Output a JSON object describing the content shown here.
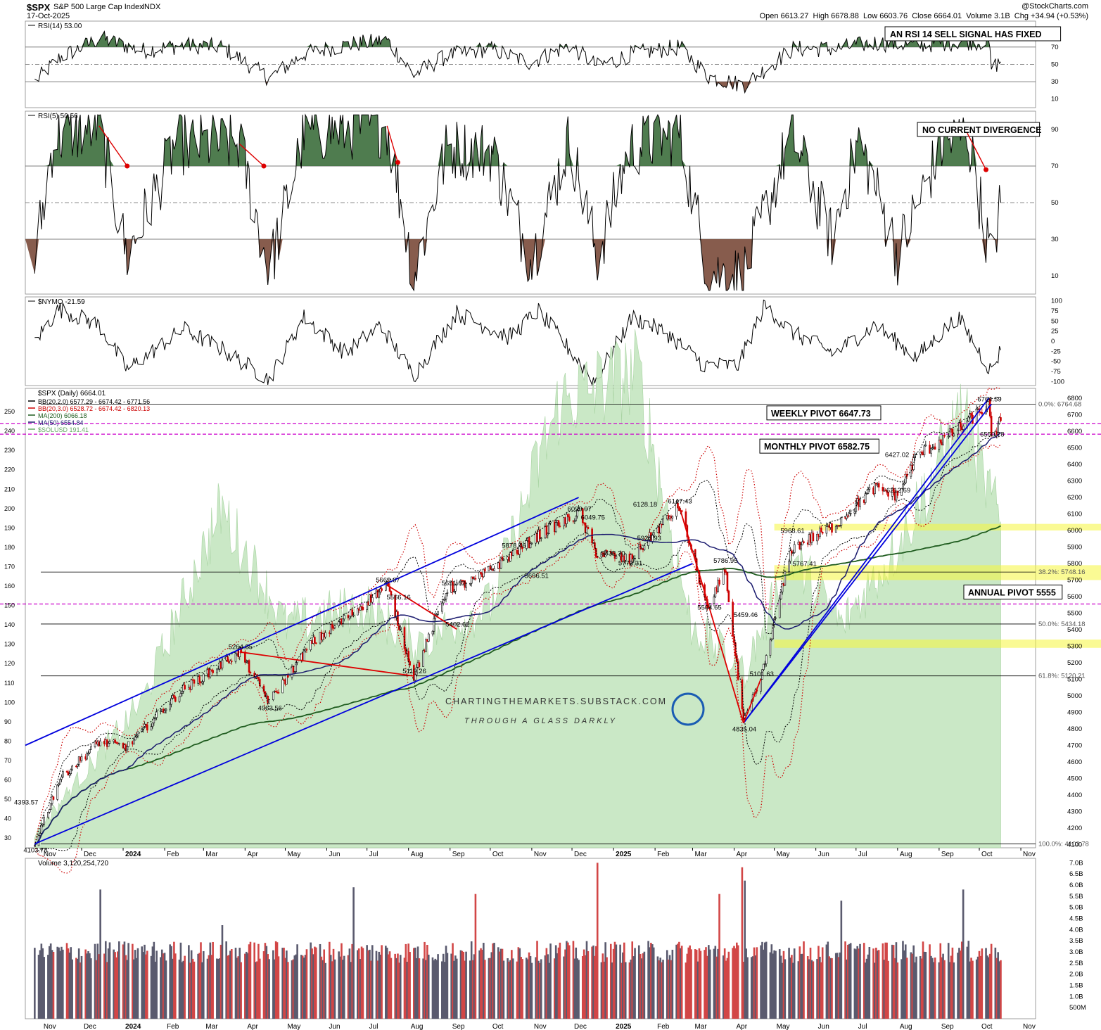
{
  "header": {
    "symbol": "$SPX",
    "name": "S&P 500 Large Cap Index",
    "exchange": "INDX",
    "date": "17-Oct-2025",
    "open_label": "Open",
    "open": "6613.27",
    "high_label": "High",
    "high": "6678.88",
    "low_label": "Low",
    "low": "6603.76",
    "close_label": "Close",
    "close": "6664.01",
    "volume_label": "Volume",
    "volume": "3.1B",
    "chg_label": "Chg",
    "chg": "+34.94 (+0.53%)",
    "logo": "@StockCharts.com"
  },
  "watermark": {
    "line1": "CHARTINGTHEMARKETS.SUBSTACK.COM",
    "line2": "THROUGH A GLASS DARKLY"
  },
  "colors": {
    "up_candle": "#000000",
    "down_candle": "#cc0000",
    "rsi_fill": "#3c6e3c",
    "rsi_low_fill": "#7a4a3a",
    "bb_outer": "#cc0000",
    "bb_inner": "#000000",
    "ma200": "#1f5c1f",
    "ma50": "#1a1a6e",
    "trendline": "#0000dd",
    "red_line": "#dd0000",
    "pivot_line": "#cc00cc",
    "highlight_zone": "#f5f53c",
    "sol_area": "#c5e6c0",
    "volume_up": "#5a5a6e",
    "volume_down": "#d24646"
  },
  "chart_data": [
    {
      "panel": "rsi14",
      "type": "line",
      "label": "RSI(14) 53.00",
      "ylim": [
        0,
        100
      ],
      "ticks": [
        10,
        30,
        50,
        70,
        90
      ],
      "reference_lines": [
        30,
        50,
        70
      ],
      "series": [
        {
          "name": "RSI(14)",
          "x": [
            "2023-10-27",
            "2023-11-15",
            "2023-12-15",
            "2024-01-15",
            "2024-02-15",
            "2024-03-15",
            "2024-04-19",
            "2024-05-15",
            "2024-06-15",
            "2024-07-16",
            "2024-08-05",
            "2024-08-30",
            "2024-09-30",
            "2024-10-31",
            "2024-11-29",
            "2024-12-20",
            "2025-01-15",
            "2025-02-19",
            "2025-03-13",
            "2025-04-08",
            "2025-05-15",
            "2025-06-15",
            "2025-07-15",
            "2025-08-15",
            "2025-09-15",
            "2025-10-08",
            "2025-10-10",
            "2025-10-17"
          ],
          "values": [
            30,
            58,
            80,
            66,
            72,
            70,
            34,
            62,
            72,
            78,
            38,
            60,
            68,
            52,
            72,
            48,
            62,
            70,
            36,
            26,
            68,
            68,
            75,
            72,
            76,
            76,
            46,
            53
          ]
        }
      ],
      "annotation": "AN RSI 14 SELL SIGNAL HAS FIXED"
    },
    {
      "panel": "rsi5",
      "type": "line",
      "label": "RSI(5) 50.56",
      "ylim": [
        0,
        100
      ],
      "ticks": [
        10,
        30,
        50,
        70,
        90
      ],
      "reference_lines": [
        30,
        50,
        70
      ],
      "series": [
        {
          "name": "RSI(5)",
          "x": [
            "2023-10-27",
            "2023-11-10",
            "2023-12-14",
            "2024-01-04",
            "2024-02-09",
            "2024-03-28",
            "2024-04-19",
            "2024-05-15",
            "2024-06-18",
            "2024-07-16",
            "2024-08-05",
            "2024-08-30",
            "2024-10-02",
            "2024-11-01",
            "2024-11-29",
            "2024-12-20",
            "2025-01-13",
            "2025-02-19",
            "2025-03-13",
            "2025-04-08",
            "2025-05-14",
            "2025-06-13",
            "2025-07-03",
            "2025-08-01",
            "2025-09-02",
            "2025-09-22",
            "2025-10-10",
            "2025-10-17"
          ],
          "values": [
            18,
            85,
            92,
            20,
            82,
            82,
            12,
            88,
            90,
            92,
            10,
            80,
            78,
            18,
            85,
            20,
            80,
            88,
            12,
            10,
            88,
            30,
            85,
            22,
            80,
            88,
            18,
            50
          ]
        }
      ],
      "annotation": "NO CURRENT DIVERGENCE"
    },
    {
      "panel": "nymo",
      "type": "line",
      "label": "$NYMO -21.59",
      "ylim": [
        -100,
        100
      ],
      "ticks": [
        100,
        75,
        50,
        25,
        0,
        -25,
        -50,
        -75,
        -100
      ],
      "series": [
        {
          "name": "$NYMO",
          "x": [
            "2023-10-27",
            "2023-11-14",
            "2023-12-14",
            "2024-01-04",
            "2024-02-15",
            "2024-03-15",
            "2024-04-19",
            "2024-05-15",
            "2024-06-15",
            "2024-07-11",
            "2024-08-05",
            "2024-09-06",
            "2024-10-15",
            "2024-11-06",
            "2024-12-18",
            "2025-01-15",
            "2025-02-10",
            "2025-03-10",
            "2025-04-04",
            "2025-04-24",
            "2025-05-15",
            "2025-06-15",
            "2025-07-15",
            "2025-08-15",
            "2025-09-15",
            "2025-10-10",
            "2025-10-17"
          ],
          "values": [
            0,
            80,
            40,
            -70,
            30,
            -20,
            -95,
            60,
            -30,
            40,
            -85,
            70,
            10,
            75,
            -100,
            60,
            20,
            -60,
            -60,
            90,
            20,
            -30,
            40,
            -40,
            60,
            -75,
            -22
          ]
        }
      ]
    },
    {
      "panel": "price",
      "type": "line",
      "title": "$SPX (Daily) 6664.01",
      "ylim": [
        4080,
        6860
      ],
      "y_ticks": [
        4100,
        4200,
        4300,
        4400,
        4500,
        4600,
        4700,
        4800,
        4900,
        5000,
        5100,
        5200,
        5300,
        5400,
        5500,
        5600,
        5700,
        5800,
        5900,
        6000,
        6100,
        6200,
        6300,
        6400,
        6500,
        6600,
        6700,
        6800
      ],
      "x_labels": [
        "Nov",
        "Dec",
        "2024",
        "Feb",
        "Mar",
        "Apr",
        "May",
        "Jun",
        "Jul",
        "Aug",
        "Sep",
        "Oct",
        "Nov",
        "Dec",
        "2025",
        "Feb",
        "Mar",
        "Apr",
        "May",
        "Jun",
        "Jul",
        "Aug",
        "Sep",
        "Oct",
        "Nov"
      ],
      "legend": [
        "BB(20,2.0) 6577.29 - 6674.42 - 6771.56",
        "BB(20,3.0) 6528.72 - 6674.42 - 6820.13",
        "MA(200) 6066.18",
        "MA(50) 6554.84",
        "$SOLUSD 191.41"
      ],
      "close": {
        "x": [
          "2023-10-27",
          "2023-11-15",
          "2023-12-14",
          "2024-01-04",
          "2024-02-12",
          "2024-03-28",
          "2024-04-19",
          "2024-05-21",
          "2024-06-17",
          "2024-07-16",
          "2024-08-05",
          "2024-08-30",
          "2024-09-20",
          "2024-10-18",
          "2024-11-11",
          "2024-12-06",
          "2024-12-19",
          "2025-01-13",
          "2025-02-19",
          "2025-03-13",
          "2025-03-25",
          "2025-04-08",
          "2025-04-21",
          "2025-05-14",
          "2025-06-15",
          "2025-07-15",
          "2025-08-01",
          "2025-08-15",
          "2025-09-15",
          "2025-10-08",
          "2025-10-10",
          "2025-10-17"
        ],
        "values": [
          4103.78,
          4500,
          4720,
          4690,
          5020,
          5264.85,
          4963.56,
          5320,
          5480,
          5669.67,
          5119.26,
          5650,
          5700,
          5860,
          6000,
          6099.97,
          5870,
          5820,
          6147.43,
          5504.65,
          5786.95,
          4835.04,
          5100,
          5890,
          6030,
          6260,
          6212.69,
          6450,
          6610,
          6764.59,
          6550.78,
          6664.01
        ]
      },
      "price_labels": [
        {
          "x": "2023-10-27",
          "y": 4103.78,
          "text": "4103.78"
        },
        {
          "x": "2023-10-20",
          "y": 4393.57,
          "text": "4393.57"
        },
        {
          "x": "2024-03-28",
          "y": 5264.85,
          "text": "5264.85"
        },
        {
          "x": "2024-04-19",
          "y": 4963.56,
          "text": "4963.56"
        },
        {
          "x": "2024-07-16",
          "y": 5669.67,
          "text": "5669.67"
        },
        {
          "x": "2024-07-24",
          "y": 5566.16,
          "text": "5566.16"
        },
        {
          "x": "2024-08-05",
          "y": 5119.26,
          "text": "5119.26"
        },
        {
          "x": "2024-09-06",
          "y": 5402.62,
          "text": "5402.62"
        },
        {
          "x": "2024-09-03",
          "y": 5651.62,
          "text": "5651.62"
        },
        {
          "x": "2024-10-18",
          "y": 5878.46,
          "text": "5878.46"
        },
        {
          "x": "2024-11-04",
          "y": 5696.51,
          "text": "5696.51"
        },
        {
          "x": "2024-12-06",
          "y": 6099.97,
          "text": "6099.97"
        },
        {
          "x": "2024-12-16",
          "y": 6049.75,
          "text": "6049.75"
        },
        {
          "x": "2024-12-31",
          "y": 5832.3,
          "text": "5832.30"
        },
        {
          "x": "2025-01-13",
          "y": 5773.31,
          "text": "5773.31"
        },
        {
          "x": "2025-01-24",
          "y": 6128.18,
          "text": "6128.18"
        },
        {
          "x": "2025-01-27",
          "y": 5923.93,
          "text": "5923.93"
        },
        {
          "x": "2025-02-19",
          "y": 6147.43,
          "text": "6147.43"
        },
        {
          "x": "2025-03-13",
          "y": 5504.65,
          "text": "5504.65"
        },
        {
          "x": "2025-03-25",
          "y": 5786.95,
          "text": "5786.95"
        },
        {
          "x": "2025-04-09",
          "y": 5459.46,
          "text": "5459.46"
        },
        {
          "x": "2025-04-08",
          "y": 4835.04,
          "text": "4835.04"
        },
        {
          "x": "2025-04-21",
          "y": 5101.63,
          "text": "5101.63"
        },
        {
          "x": "2025-05-14",
          "y": 5968.61,
          "text": "5968.61"
        },
        {
          "x": "2025-05-23",
          "y": 5767.41,
          "text": "5767.41"
        },
        {
          "x": "2025-07-31",
          "y": 6427.02,
          "text": "6427.02"
        },
        {
          "x": "2025-08-01",
          "y": 6212.69,
          "text": "6212.69"
        },
        {
          "x": "2025-10-08",
          "y": 6764.59,
          "text": "6764.59"
        },
        {
          "x": "2025-10-10",
          "y": 6550.78,
          "text": "6550.78"
        }
      ],
      "fib_levels": [
        {
          "pct": "0.0%",
          "value": 6764.68,
          "label": "0.0%: 6764.68"
        },
        {
          "pct": "38.2%",
          "value": 5748.16,
          "label": "38.2%: 5748.16"
        },
        {
          "pct": "50.0%",
          "value": 5434.18,
          "label": "50.0%: 5434.18"
        },
        {
          "pct": "61.8%",
          "value": 5120.21,
          "label": "61.8%: 5120.21"
        },
        {
          "pct": "100.0%",
          "value": 4103.78,
          "label": "100.0%: 4103.78"
        }
      ],
      "pivots": [
        {
          "label": "WEEKLY PIVOT 6647.73",
          "value": 6647.73
        },
        {
          "label": "MONTHLY PIVOT 6582.75",
          "value": 6582.75
        },
        {
          "label": "ANNUAL PIVOT 5555",
          "value": 5555
        }
      ],
      "support_zones": [
        [
          6000,
          6040
        ],
        [
          5700,
          5790
        ],
        [
          5290,
          5340
        ]
      ],
      "secondary_axis": {
        "series": "$SOLUSD",
        "ticks": [
          30,
          40,
          50,
          60,
          70,
          80,
          90,
          100,
          110,
          120,
          130,
          140,
          150,
          160,
          170,
          180,
          190,
          200,
          210,
          220,
          230,
          240,
          250
        ]
      }
    },
    {
      "panel": "volume",
      "type": "bar",
      "label": "Volume 3,120,254,720",
      "y_ticks": [
        "500M",
        "1.0B",
        "1.5B",
        "2.0B",
        "2.5B",
        "3.0B",
        "3.5B",
        "4.0B",
        "4.5B",
        "5.0B",
        "5.5B",
        "6.0B",
        "6.5B",
        "7.0B"
      ],
      "ylim": [
        0,
        7.2
      ],
      "unit": "B",
      "typical_range": [
        2.5,
        3.5
      ],
      "spikes": [
        {
          "x": "2023-12-15",
          "value": 5.8
        },
        {
          "x": "2024-03-15",
          "value": 4.2
        },
        {
          "x": "2024-06-21",
          "value": 5.9
        },
        {
          "x": "2024-09-20",
          "value": 5.6
        },
        {
          "x": "2024-12-20",
          "value": 7.0
        },
        {
          "x": "2025-03-21",
          "value": 5.6
        },
        {
          "x": "2025-04-07",
          "value": 6.8
        },
        {
          "x": "2025-04-09",
          "value": 6.2
        },
        {
          "x": "2025-06-20",
          "value": 5.3
        },
        {
          "x": "2025-09-19",
          "value": 5.8
        }
      ]
    }
  ]
}
